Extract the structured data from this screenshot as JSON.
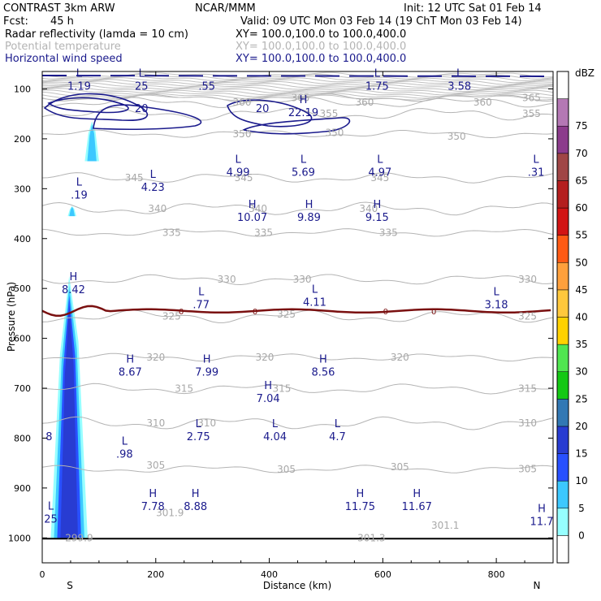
{
  "header": {
    "program": "CONTRAST  3km ARW",
    "center": "NCAR/MMM",
    "init": "Init: 12 UTC Sat 01 Feb 14",
    "fcst_label": "Fcst:",
    "fcst_value": "45 h",
    "valid": "Valid: 09 UTC Mon 03 Feb 14 (19 ChT Mon 03 Feb 14)",
    "fields": [
      {
        "name": "Radar reflectivity (lamda = 10 cm)",
        "xy": "XY= 100.0,100.0 to 100.0,400.0"
      },
      {
        "name": "Potential temperature",
        "xy": "XY= 100.0,100.0 to 100.0,400.0"
      },
      {
        "name": "Horizontal wind speed",
        "xy": "XY= 100.0,100.0 to 100.0,400.0"
      }
    ]
  },
  "chart_data": {
    "type": "cross-section contour",
    "xlabel": "Distance (km)",
    "ylabel": "Pressure (hPa)",
    "xlim": [
      0,
      900
    ],
    "ylim": [
      1050,
      65
    ],
    "x_ticks": [
      0,
      200,
      400,
      600,
      800
    ],
    "y_ticks": [
      100,
      200,
      300,
      400,
      500,
      600,
      700,
      800,
      900,
      1000
    ],
    "x_end_labels": {
      "left": "S",
      "right": "N"
    },
    "theta_contours": [
      {
        "value": 365,
        "pressure": 118,
        "labels": [
          [
            455,
            118
          ],
          [
            862,
            118
          ]
        ]
      },
      {
        "value": 360,
        "pressure": 127,
        "labels": [
          [
            352,
            127
          ],
          [
            568,
            127
          ],
          [
            776,
            127
          ]
        ]
      },
      {
        "value": 355,
        "pressure": 150,
        "labels": [
          [
            505,
            150
          ],
          [
            862,
            150
          ]
        ]
      },
      {
        "value": 350,
        "pressure": 190,
        "labels": [
          [
            352,
            190
          ],
          [
            515,
            188
          ],
          [
            730,
            195
          ]
        ]
      },
      {
        "value": 345,
        "pressure": 278,
        "labels": [
          [
            162,
            278
          ],
          [
            355,
            278
          ],
          [
            595,
            278
          ]
        ]
      },
      {
        "value": 340,
        "pressure": 340,
        "labels": [
          [
            203,
            340
          ],
          [
            380,
            340
          ],
          [
            575,
            340
          ]
        ]
      },
      {
        "value": 335,
        "pressure": 388,
        "labels": [
          [
            228,
            388
          ],
          [
            390,
            388
          ],
          [
            610,
            388
          ]
        ]
      },
      {
        "value": 330,
        "pressure": 482,
        "labels": [
          [
            325,
            482
          ],
          [
            458,
            482
          ],
          [
            855,
            482
          ]
        ]
      },
      {
        "value": 325,
        "pressure": 556,
        "labels": [
          [
            228,
            556
          ],
          [
            430,
            552
          ],
          [
            855,
            556
          ]
        ]
      },
      {
        "value": 320,
        "pressure": 638,
        "labels": [
          [
            200,
            638
          ],
          [
            392,
            638
          ],
          [
            630,
            638
          ]
        ]
      },
      {
        "value": 315,
        "pressure": 701,
        "labels": [
          [
            250,
            701
          ],
          [
            422,
            701
          ],
          [
            855,
            701
          ]
        ]
      },
      {
        "value": 310,
        "pressure": 770,
        "labels": [
          [
            200,
            770
          ],
          [
            290,
            770
          ],
          [
            855,
            770
          ]
        ]
      },
      {
        "value": 305,
        "pressure": 862,
        "labels": [
          [
            200,
            855
          ],
          [
            430,
            863
          ],
          [
            630,
            858
          ],
          [
            855,
            862
          ]
        ]
      }
    ],
    "theta_surface_labels": [
      {
        "text": "301.9",
        "x": 225,
        "p": 950
      },
      {
        "text": "301.3",
        "x": 580,
        "p": 1000
      },
      {
        "text": "301.1",
        "x": 710,
        "p": 975
      },
      {
        "text": "299.9",
        "x": 65,
        "p": 1000
      }
    ],
    "wind_speed_contours": [
      {
        "value": 20,
        "labels": [
          [
            175,
            140
          ],
          [
            388,
            140
          ]
        ]
      }
    ],
    "extrema": [
      {
        "kind": "L",
        "value": "1.19",
        "x": 65,
        "p": 82
      },
      {
        "kind": "L",
        "value": "25",
        "x": 175,
        "p": 82
      },
      {
        "kind": "",
        "value": ".55",
        "x": 290,
        "p": 82
      },
      {
        "kind": "L",
        "value": "1.75",
        "x": 590,
        "p": 82
      },
      {
        "kind": "L",
        "value": "3.58",
        "x": 735,
        "p": 82
      },
      {
        "kind": "H",
        "value": "22.19",
        "x": 460,
        "p": 135
      },
      {
        "kind": "L",
        "value": "4.99",
        "x": 345,
        "p": 255
      },
      {
        "kind": "L",
        "value": "5.69",
        "x": 460,
        "p": 255
      },
      {
        "kind": "L",
        "value": "4.97",
        "x": 595,
        "p": 255
      },
      {
        "kind": "L",
        "value": ".31",
        "x": 870,
        "p": 255
      },
      {
        "kind": "L",
        "value": ".19",
        "x": 65,
        "p": 300
      },
      {
        "kind": "L",
        "value": "4.23",
        "x": 195,
        "p": 285
      },
      {
        "kind": "H",
        "value": "10.07",
        "x": 370,
        "p": 345
      },
      {
        "kind": "H",
        "value": "9.89",
        "x": 470,
        "p": 345
      },
      {
        "kind": "H",
        "value": "9.15",
        "x": 590,
        "p": 345
      },
      {
        "kind": "H",
        "value": "8.42",
        "x": 55,
        "p": 490
      },
      {
        "kind": "L",
        "value": ".77",
        "x": 280,
        "p": 520
      },
      {
        "kind": "L",
        "value": "4.11",
        "x": 480,
        "p": 515
      },
      {
        "kind": "L",
        "value": "3.18",
        "x": 800,
        "p": 520
      },
      {
        "kind": "H",
        "value": "8.67",
        "x": 155,
        "p": 655
      },
      {
        "kind": "H",
        "value": "7.99",
        "x": 290,
        "p": 655
      },
      {
        "kind": "H",
        "value": "8.56",
        "x": 495,
        "p": 655
      },
      {
        "kind": "H",
        "value": "7.04",
        "x": 398,
        "p": 708
      },
      {
        "kind": "L",
        "value": "2.75",
        "x": 275,
        "p": 785
      },
      {
        "kind": "L",
        "value": "4.04",
        "x": 410,
        "p": 785
      },
      {
        "kind": "L",
        "value": "4.7",
        "x": 520,
        "p": 785
      },
      {
        "kind": "L",
        "value": ".98",
        "x": 145,
        "p": 820
      },
      {
        "kind": "",
        "value": "8",
        "x": 12,
        "p": 785
      },
      {
        "kind": "H",
        "value": "7.78",
        "x": 195,
        "p": 925
      },
      {
        "kind": "H",
        "value": "8.88",
        "x": 270,
        "p": 925
      },
      {
        "kind": "H",
        "value": "11.75",
        "x": 560,
        "p": 925
      },
      {
        "kind": "H",
        "value": "11.67",
        "x": 660,
        "p": 925
      },
      {
        "kind": "H",
        "value": "11.7",
        "x": 880,
        "p": 955
      },
      {
        "kind": "L",
        "value": "25",
        "x": 15,
        "p": 950
      }
    ],
    "freezing_level": {
      "label": "0",
      "pressure": 545,
      "label_x": [
        245,
        375,
        605,
        690
      ]
    },
    "reflectivity_cells": [
      {
        "x_range": [
          15,
          80
        ],
        "p_top": 475,
        "p_bottom": 1000,
        "max_dbz": 20
      },
      {
        "x_range": [
          75,
          100
        ],
        "p_top": 165,
        "p_bottom": 245,
        "max_dbz": 10
      },
      {
        "x_range": [
          45,
          60
        ],
        "p_top": 335,
        "p_bottom": 355,
        "max_dbz": 10
      }
    ],
    "colorbar": {
      "unit": "dBZ",
      "levels": [
        0,
        5,
        10,
        15,
        20,
        25,
        30,
        35,
        40,
        45,
        50,
        55,
        60,
        65,
        70,
        75
      ],
      "colors": [
        "#ffffff",
        "#96ffff",
        "#3cc8ff",
        "#2850ff",
        "#283cd2",
        "#3278b4",
        "#14c814",
        "#50e650",
        "#ffd200",
        "#ffc83c",
        "#ffa03c",
        "#ff5a14",
        "#d21414",
        "#b41e1e",
        "#a04646",
        "#8c3c8c",
        "#b478b4",
        "#ffffff"
      ]
    }
  }
}
